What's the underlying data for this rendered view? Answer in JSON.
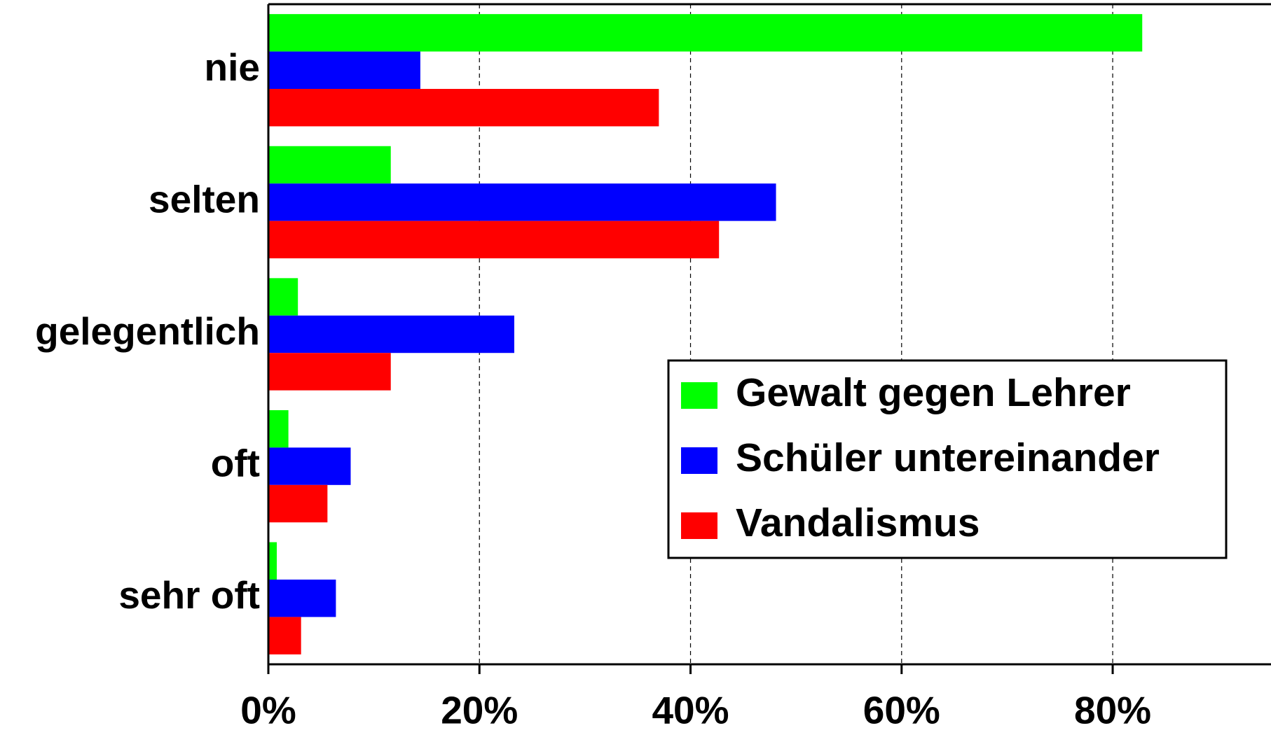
{
  "chart_data": {
    "type": "bar",
    "orientation": "horizontal",
    "categories": [
      "nie",
      "selten",
      "gelegentlich",
      "oft",
      "sehr oft"
    ],
    "series": [
      {
        "name": "Gewalt gegen Lehrer",
        "color": "#00ff00",
        "values": [
          82.8,
          11.6,
          2.8,
          1.9,
          0.8
        ]
      },
      {
        "name": "Schüler untereinander",
        "color": "#0000ff",
        "values": [
          14.4,
          48.1,
          23.3,
          7.8,
          6.4
        ]
      },
      {
        "name": "Vandalismus",
        "color": "#ff0000",
        "values": [
          37.0,
          42.7,
          11.6,
          5.6,
          3.1
        ]
      }
    ],
    "xlim": [
      0,
      95
    ],
    "xticks": [
      {
        "value": 0,
        "label": "0%"
      },
      {
        "value": 20,
        "label": "20%"
      },
      {
        "value": 40,
        "label": "40%"
      },
      {
        "value": 60,
        "label": "60%"
      },
      {
        "value": 80,
        "label": "80%"
      }
    ],
    "grid": true,
    "legend": "lower right"
  }
}
